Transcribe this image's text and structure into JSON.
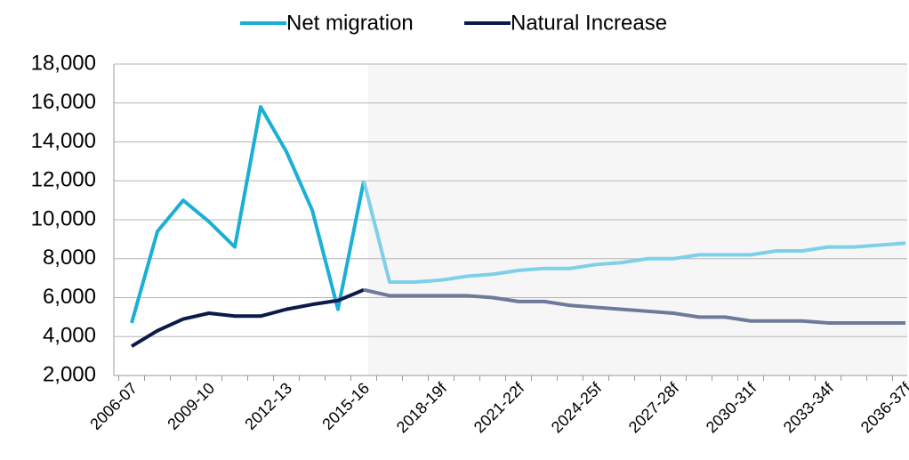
{
  "chart_data": {
    "type": "line",
    "categories": [
      "2006-07",
      null,
      null,
      "2009-10",
      null,
      null,
      "2012-13",
      null,
      null,
      "2015-16",
      null,
      null,
      "2018-19f",
      null,
      null,
      "2021-22f",
      null,
      null,
      "2024-25f",
      null,
      null,
      "2027-28f",
      null,
      null,
      "2030-31f",
      null,
      null,
      "2033-34f",
      null,
      null,
      "2036-37f"
    ],
    "series": [
      {
        "name": "Net migration",
        "color": "#1aafd4",
        "forecast_color": "#7dd0e8",
        "values": [
          4700,
          9400,
          11000,
          9900,
          8600,
          15800,
          13500,
          10500,
          5400,
          12000,
          6800,
          6800,
          6900,
          7100,
          7200,
          7400,
          7500,
          7500,
          7700,
          7800,
          8000,
          8000,
          8200,
          8200,
          8200,
          8400,
          8400,
          8600,
          8600,
          8700,
          8800
        ]
      },
      {
        "name": "Natural Increase",
        "color": "#0c1a4a",
        "forecast_color": "#6d7a99",
        "values": [
          3500,
          4300,
          4900,
          5200,
          5050,
          5050,
          5400,
          5650,
          5850,
          6400,
          6100,
          6100,
          6100,
          6100,
          6000,
          5800,
          5800,
          5600,
          5500,
          5400,
          5300,
          5200,
          5000,
          5000,
          4800,
          4800,
          4800,
          4700,
          4700,
          4700,
          4700
        ]
      }
    ],
    "forecast_start": 9,
    "ylim": [
      2000,
      18000
    ],
    "yticks": [
      {
        "value": 2000,
        "label": "2,000"
      },
      {
        "value": 4000,
        "label": "4,000"
      },
      {
        "value": 6000,
        "label": "6,000"
      },
      {
        "value": 8000,
        "label": "8,000"
      },
      {
        "value": 10000,
        "label": "10,000"
      },
      {
        "value": 12000,
        "label": "12,000"
      },
      {
        "value": 14000,
        "label": "14,000"
      },
      {
        "value": 16000,
        "label": "16,000"
      },
      {
        "value": 18000,
        "label": "18,000"
      }
    ],
    "grid": true,
    "legend": "top"
  }
}
